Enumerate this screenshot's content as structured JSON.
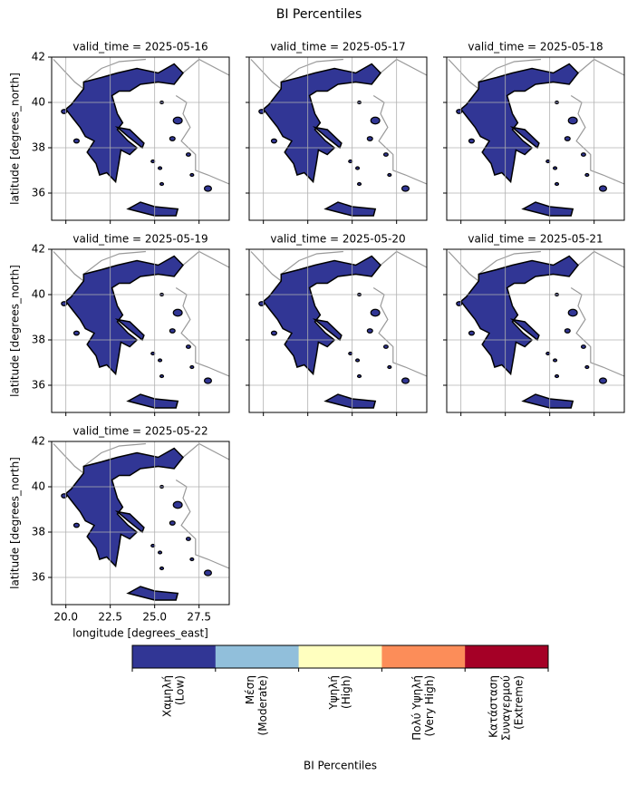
{
  "chart_data": {
    "type": "map",
    "title": "BI Percentiles",
    "panels": [
      {
        "title": "valid_time = 2025-05-16"
      },
      {
        "title": "valid_time = 2025-05-17"
      },
      {
        "title": "valid_time = 2025-05-18"
      },
      {
        "title": "valid_time = 2025-05-19"
      },
      {
        "title": "valid_time = 2025-05-20"
      },
      {
        "title": "valid_time = 2025-05-21"
      },
      {
        "title": "valid_time = 2025-05-22"
      }
    ],
    "xlabel": "longitude [degrees_east]",
    "ylabel": "latitude [degrees_north]",
    "xlim": [
      19.2,
      29.2
    ],
    "ylim": [
      34.8,
      42
    ],
    "xticks": [
      {
        "value": 20,
        "label": "20.0"
      },
      22.5,
      {
        "value": 25,
        "label": "25.0"
      },
      27.5
    ],
    "yticks": [
      36,
      38,
      40,
      42
    ],
    "grid": true,
    "colorbar": {
      "label": "BI Percentiles",
      "colors": [
        "#313695",
        "#91bfdb",
        "#ffffbf",
        "#fc8d59",
        "#a50026"
      ],
      "categories": [
        [
          "Χαμηλή",
          "(Low)"
        ],
        [
          "Μέση",
          "(Moderate)"
        ],
        [
          "Υψηλή",
          "(High)"
        ],
        [
          "Πολύ Υψηλή",
          "(Very High)"
        ],
        [
          "Κατάσταση",
          "Συναγερμού",
          "(Extreme)"
        ]
      ]
    }
  }
}
